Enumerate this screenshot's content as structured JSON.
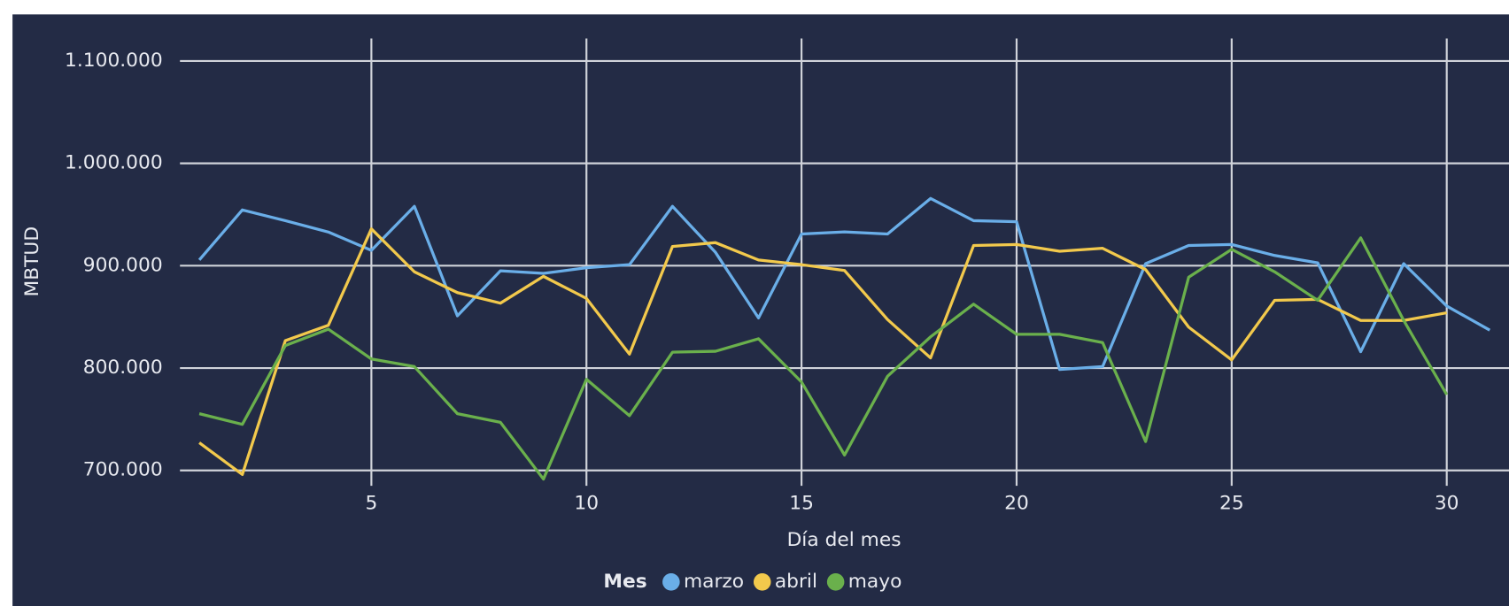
{
  "chart_data": {
    "type": "line",
    "x_label": "Día del mes",
    "y_label": "MBTUD",
    "legend_title": "Mes",
    "legend": "bottom",
    "x": [
      1,
      2,
      3,
      4,
      5,
      6,
      7,
      8,
      9,
      10,
      11,
      12,
      13,
      14,
      15,
      16,
      17,
      18,
      19,
      20,
      21,
      22,
      23,
      24,
      25,
      26,
      27,
      28,
      29,
      30,
      31
    ],
    "series": [
      {
        "name": "marzo",
        "color": "#6aaee8",
        "values": [
          905600,
          954500,
          944000,
          932900,
          915000,
          958000,
          851000,
          895000,
          892500,
          898000,
          901000,
          958000,
          913000,
          849000,
          931000,
          933000,
          931000,
          965700,
          944000,
          943000,
          798600,
          801400,
          902000,
          919700,
          920700,
          910000,
          902800,
          816000,
          902000,
          860600,
          837000
        ]
      },
      {
        "name": "abril",
        "color": "#f2c94c",
        "values": [
          727000,
          696000,
          826800,
          841800,
          936000,
          894000,
          873700,
          863400,
          889600,
          868000,
          813600,
          918800,
          922500,
          905600,
          901000,
          895300,
          847400,
          809900,
          919700,
          920700,
          914100,
          917000,
          896200,
          840000,
          808000,
          866200,
          867100,
          846500,
          846500,
          854000,
          null
        ]
      },
      {
        "name": "mayo",
        "color": "#6ab04c",
        "values": [
          755400,
          745000,
          822000,
          838000,
          808900,
          801400,
          755400,
          747000,
          691500,
          789000,
          753500,
          815500,
          816400,
          828600,
          786400,
          715000,
          792000,
          830500,
          862400,
          833000,
          833000,
          824900,
          728200,
          888700,
          916000,
          894000,
          866200,
          927200,
          846500,
          774000,
          null
        ]
      }
    ],
    "xlim": [
      0.55,
      31
    ],
    "xticks": [
      5,
      10,
      15,
      20,
      25,
      30
    ],
    "ylim": [
      685000,
      1122000
    ],
    "yticks": [
      {
        "value": 700000,
        "label": "700.000"
      },
      {
        "value": 800000,
        "label": "800.000"
      },
      {
        "value": 900000,
        "label": "900.000"
      },
      {
        "value": 1000000,
        "label": "1.000.000"
      },
      {
        "value": 1100000,
        "label": "1.100.000"
      }
    ],
    "grid": true
  }
}
